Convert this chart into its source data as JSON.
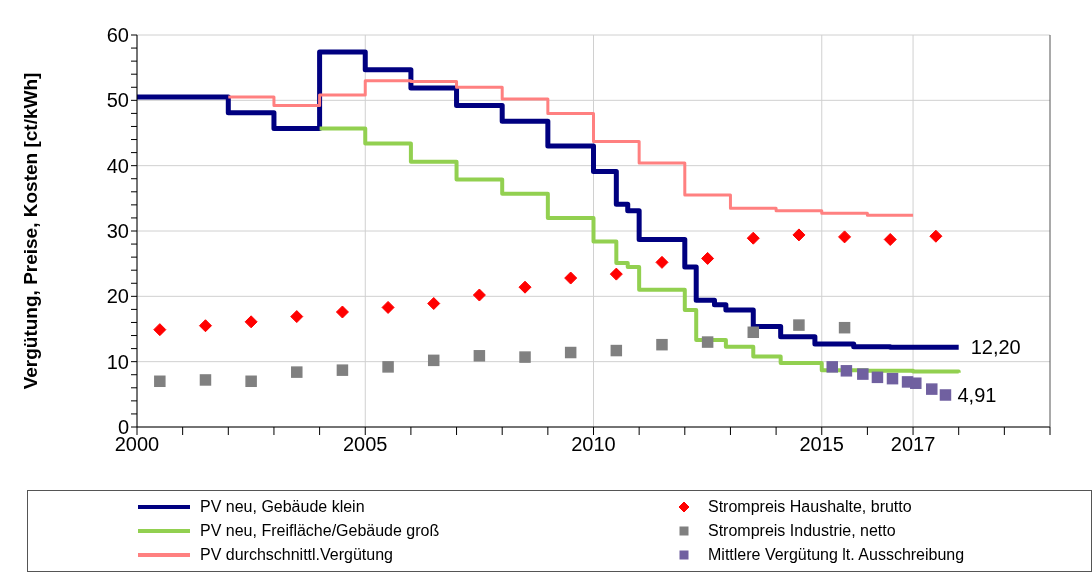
{
  "chart_data": {
    "type": "step",
    "ylabel": "Vergütung, Preise, Kosten [ct/kWh]",
    "xlim": [
      2000,
      2020
    ],
    "xticks": [
      2000,
      {
        "value": 2001,
        "label": null
      },
      {
        "value": 2002,
        "label": null
      },
      {
        "value": 2003,
        "label": null
      },
      {
        "value": 2004,
        "label": null
      },
      2005,
      {
        "value": 2006,
        "label": null
      },
      {
        "value": 2007,
        "label": null
      },
      {
        "value": 2008,
        "label": null
      },
      {
        "value": 2009,
        "label": null
      },
      2010,
      {
        "value": 2011,
        "label": null
      },
      {
        "value": 2012,
        "label": null
      },
      {
        "value": 2013,
        "label": null
      },
      {
        "value": 2014,
        "label": null
      },
      2015,
      {
        "value": 2016,
        "label": null
      },
      2017,
      {
        "value": 2018,
        "label": null
      },
      {
        "value": 2019,
        "label": null
      },
      {
        "value": 2020,
        "label": null
      }
    ],
    "ylim": [
      0,
      60
    ],
    "yticks": [
      0,
      {
        "value": 2,
        "label": null
      },
      {
        "value": 4,
        "label": null
      },
      {
        "value": 6,
        "label": null
      },
      {
        "value": 8,
        "label": null
      },
      10,
      {
        "value": 12,
        "label": null
      },
      {
        "value": 14,
        "label": null
      },
      {
        "value": 16,
        "label": null
      },
      {
        "value": 18,
        "label": null
      },
      20,
      {
        "value": 22,
        "label": null
      },
      {
        "value": 24,
        "label": null
      },
      {
        "value": 26,
        "label": null
      },
      {
        "value": 28,
        "label": null
      },
      30,
      {
        "value": 32,
        "label": null
      },
      {
        "value": 34,
        "label": null
      },
      {
        "value": 36,
        "label": null
      },
      {
        "value": 38,
        "label": null
      },
      40,
      {
        "value": 42,
        "label": null
      },
      {
        "value": 44,
        "label": null
      },
      {
        "value": 46,
        "label": null
      },
      {
        "value": 48,
        "label": null
      },
      50,
      {
        "value": 52,
        "label": null
      },
      {
        "value": 54,
        "label": null
      },
      {
        "value": 56,
        "label": null
      },
      {
        "value": 58,
        "label": null
      },
      60
    ],
    "grid": true,
    "legend": "bottom",
    "series": [
      {
        "name": "PV neu, Gebäude klein",
        "color": "#000080",
        "x": [
          2000,
          2002,
          2003,
          2004,
          2005,
          2006,
          2007,
          2008,
          2009,
          2010,
          2010.5,
          2010.75,
          2011,
          2012,
          2012.25,
          2012.65,
          2012.9,
          2013.5,
          2014.1,
          2014.85,
          2015.7,
          2016.5,
          2018
        ],
        "values": [
          50.5,
          48.1,
          45.7,
          57.4,
          54.7,
          51.9,
          49.2,
          46.8,
          43.0,
          39.1,
          34.1,
          33.1,
          28.7,
          24.5,
          19.4,
          18.7,
          17.9,
          15.4,
          13.8,
          12.7,
          12.3,
          12.2,
          12.2
        ]
      },
      {
        "name": "PV neu, Freifläche/Gebäude groß",
        "color": "#92d050",
        "x": [
          2004,
          2005,
          2006,
          2007,
          2008,
          2009,
          2010,
          2010.5,
          2010.75,
          2011,
          2012,
          2012.25,
          2012.9,
          2013.5,
          2014.1,
          2015,
          2016,
          2017,
          2018
        ],
        "values": [
          45.7,
          43.4,
          40.6,
          37.9,
          35.7,
          32.0,
          28.4,
          25.1,
          24.5,
          21.0,
          17.9,
          13.3,
          12.3,
          10.8,
          9.8,
          8.7,
          8.6,
          8.5,
          8.3
        ]
      },
      {
        "name": "PV durchschnittl.Vergütung",
        "color": "#ff8080",
        "x": [
          2002,
          2003,
          2004,
          2005,
          2006,
          2007,
          2008,
          2009,
          2010,
          2011,
          2012,
          2013,
          2014,
          2015,
          2016,
          2017
        ],
        "values": [
          50.5,
          49.2,
          50.8,
          53.0,
          52.9,
          52.0,
          50.2,
          48.0,
          43.7,
          40.4,
          35.5,
          33.5,
          33.1,
          32.7,
          32.4,
          32.4
        ]
      },
      {
        "name": "Strompreis Haushalte, brutto",
        "type": "scatter",
        "marker": "diamond",
        "color": "#ff0000",
        "x": [
          2000.5,
          2001.5,
          2002.5,
          2003.5,
          2004.5,
          2005.5,
          2006.5,
          2007.5,
          2008.5,
          2009.5,
          2010.5,
          2011.5,
          2012.5,
          2013.5,
          2014.5,
          2015.5,
          2016.5,
          2017.5
        ],
        "values": [
          14.9,
          15.5,
          16.1,
          16.9,
          17.6,
          18.3,
          18.9,
          20.2,
          21.4,
          22.8,
          23.4,
          25.2,
          25.8,
          28.9,
          29.4,
          29.1,
          28.7,
          29.2
        ]
      },
      {
        "name": "Strompreis Industrie, netto",
        "type": "scatter",
        "marker": "square",
        "color": "#808080",
        "x": [
          2000.5,
          2001.5,
          2002.5,
          2003.5,
          2004.5,
          2005.5,
          2006.5,
          2007.5,
          2008.5,
          2009.5,
          2010.5,
          2011.5,
          2012.5,
          2013.5,
          2014.5,
          2015.5
        ],
        "values": [
          7.0,
          7.2,
          7.0,
          8.4,
          8.7,
          9.2,
          10.2,
          10.9,
          10.7,
          11.4,
          11.7,
          12.6,
          13.0,
          14.5,
          15.6,
          15.2
        ]
      },
      {
        "name": "Mittlere Vergütung lt. Ausschreibung",
        "type": "scatter",
        "marker": "square",
        "color": "#7060a0",
        "x": [
          2015.23,
          2015.54,
          2015.9,
          2016.22,
          2016.55,
          2016.88,
          2017.06,
          2017.41,
          2017.71
        ],
        "values": [
          9.2,
          8.6,
          8.1,
          7.6,
          7.4,
          6.9,
          6.7,
          5.8,
          4.9
        ]
      }
    ],
    "annotations": [
      {
        "text": "12,20",
        "x": 2018,
        "y": 12.2
      },
      {
        "text": "4,91",
        "x": 2017.71,
        "y": 4.91
      }
    ]
  }
}
